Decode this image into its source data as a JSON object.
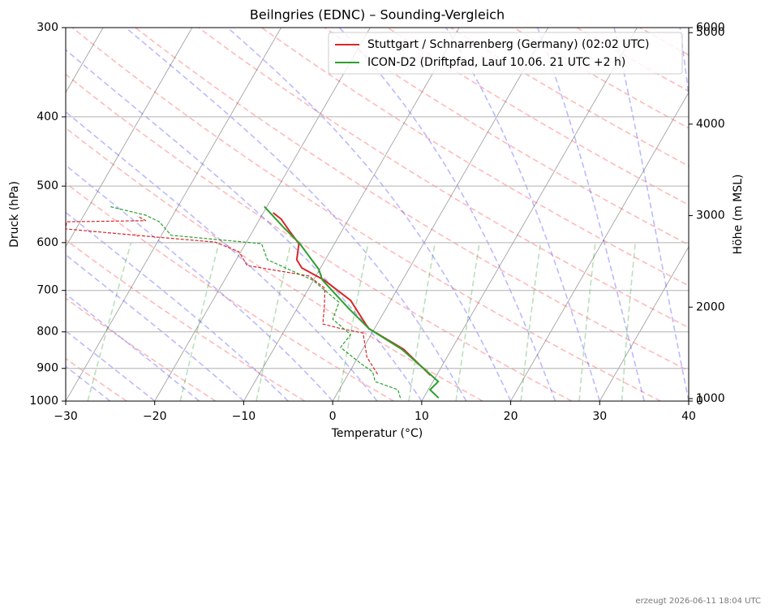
{
  "chart_data": {
    "type": "skewt",
    "title": "Beilngries (EDNC) – Sounding-Vergleich",
    "x_label": "Temperatur (°C)",
    "y_label": "Druck (hPa)",
    "y2_label": "Höhe (m MSL)",
    "footer": "erzeugt 2026-06-11 18:04 UTC",
    "xlim": [
      -30,
      40
    ],
    "xticks": [
      {
        "value": -30,
        "label": "−30"
      },
      {
        "value": -20,
        "label": "−20"
      },
      {
        "value": -10,
        "label": "−10"
      },
      0,
      10,
      20,
      30,
      40
    ],
    "ylim": [
      1000,
      300
    ],
    "yscale": "log",
    "yticks": [
      300,
      400,
      500,
      600,
      700,
      800,
      900,
      1000
    ],
    "y2lim": [
      973,
      5055
    ],
    "y2ticks": [
      0,
      1000,
      2000,
      3000,
      4000,
      5000,
      6000
    ],
    "grid": true,
    "legend": "upper right",
    "series": [
      {
        "name": "Stuttgart / Schnarrenberg (Germany) (02:02 UTC)",
        "color": "#d62728",
        "pressure": [
          920,
          846,
          792,
          780,
          723,
          677,
          651,
          634,
          602,
          579,
          556,
          545
        ],
        "temperature": [
          9.3,
          4.6,
          -0.6,
          -1.3,
          -4.5,
          -8.8,
          -12.1,
          -13.2,
          -14.0,
          -15.8,
          -17.6,
          -18.9
        ],
        "dewpoint_pressure": [
          917,
          868,
          803,
          791,
          780,
          732,
          695,
          668,
          646,
          618,
          599,
          589,
          574,
          561,
          559,
          551
        ],
        "dewpoint": [
          3.3,
          1.0,
          -1.0,
          -3.9,
          -6.1,
          -7.2,
          -8.2,
          -10.8,
          -18.4,
          -20.2,
          -23.5,
          -30.7,
          -41.2,
          -41.5,
          -32.7,
          -33.9
        ]
      },
      {
        "name": "ICON-D2 (Driftpfad, Lauf 10.06. 21 UTC +2 h)",
        "color": "#2ca02c",
        "pressure": [
          990,
          964,
          939,
          917,
          846,
          792,
          742,
          677,
          654,
          602,
          571,
          534
        ],
        "temperature": [
          11.7,
          10.2,
          10.6,
          9.2,
          4.4,
          -0.6,
          -4.2,
          -9.0,
          -10.1,
          -13.9,
          -16.8,
          -20.3
        ],
        "dewpoint_pressure": [
          990,
          964,
          939,
          910,
          887,
          841,
          807,
          768,
          727,
          677,
          634,
          602,
          586,
          561,
          549,
          534
        ],
        "dewpoint": [
          7.4,
          6.6,
          3.5,
          2.6,
          0.8,
          -2.6,
          -2.3,
          -5.3,
          -5.7,
          -10.1,
          -16.5,
          -18.2,
          -28.9,
          -31.1,
          -33.1,
          -37.7
        ]
      }
    ]
  }
}
